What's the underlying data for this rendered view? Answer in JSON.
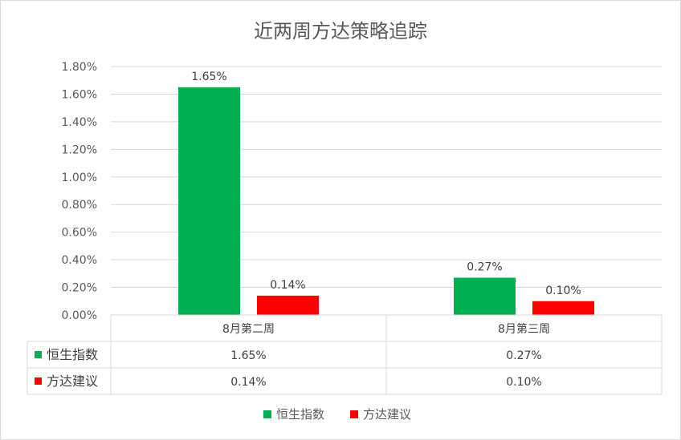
{
  "chart_data": {
    "type": "bar",
    "title": "近两周方达策略追踪",
    "categories": [
      "8月第二周",
      "8月第三周"
    ],
    "series": [
      {
        "name": "恒生指数",
        "values": [
          1.65,
          0.27
        ],
        "color": "#00B050"
      },
      {
        "name": "方达建议",
        "values": [
          0.14,
          0.1
        ],
        "color": "#FF0000"
      }
    ],
    "value_unit": "%",
    "ylim": [
      0,
      1.8
    ],
    "y_ticks": [
      "0.00%",
      "0.20%",
      "0.40%",
      "0.60%",
      "0.80%",
      "1.00%",
      "1.20%",
      "1.40%",
      "1.60%",
      "1.80%"
    ],
    "data_labels": [
      [
        "1.65%",
        "0.27%"
      ],
      [
        "0.14%",
        "0.10%"
      ]
    ],
    "data_table": {
      "rows": [
        {
          "name": "恒生指数",
          "cells": [
            "1.65%",
            "0.27%"
          ]
        },
        {
          "name": "方达建议",
          "cells": [
            "0.14%",
            "0.10%"
          ]
        }
      ]
    },
    "legend": {
      "position": "bottom",
      "items": [
        "恒生指数",
        "方达建议"
      ]
    },
    "grid": true
  }
}
